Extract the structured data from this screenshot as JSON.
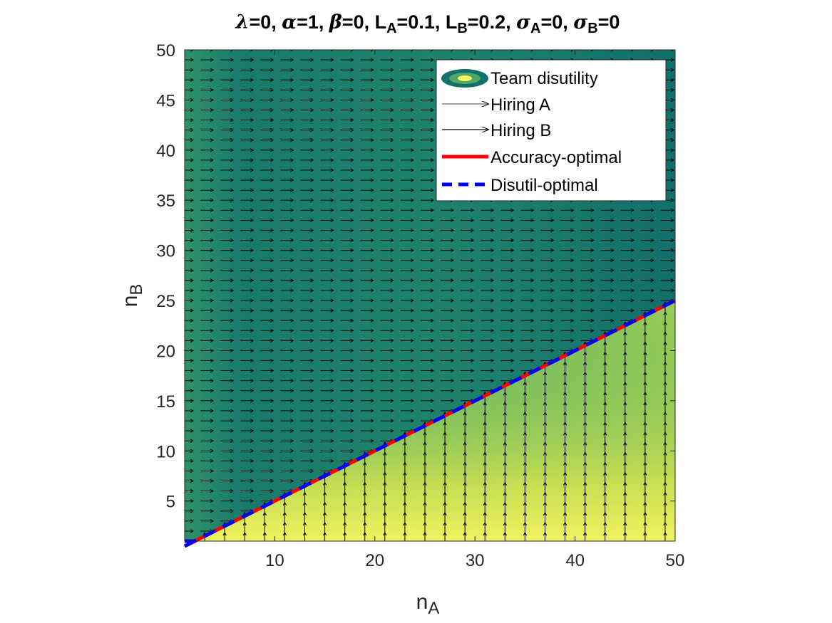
{
  "chart_data": {
    "type": "heatmap",
    "title": {
      "parts": [
        {
          "text": "λ",
          "greek": true
        },
        {
          "text": "=0, "
        },
        {
          "text": "α",
          "greek": true
        },
        {
          "text": "=1, "
        },
        {
          "text": "β",
          "greek": true
        },
        {
          "text": "=0, L"
        },
        {
          "text": "A",
          "sub": true
        },
        {
          "text": "=0.1, L"
        },
        {
          "text": "B",
          "sub": true
        },
        {
          "text": "=0.2, "
        },
        {
          "text": "σ",
          "greek": true
        },
        {
          "text": "A",
          "sub": true
        },
        {
          "text": "=0, "
        },
        {
          "text": "σ",
          "greek": true
        },
        {
          "text": "B",
          "sub": true
        },
        {
          "text": "=0"
        }
      ]
    },
    "xlabel": {
      "main": "n",
      "sub": "A"
    },
    "ylabel": {
      "main": "n",
      "sub": "B"
    },
    "xlim": [
      1,
      50
    ],
    "ylim": [
      1,
      50
    ],
    "xticks": [
      10,
      20,
      30,
      40,
      50
    ],
    "yticks": [
      5,
      10,
      15,
      20,
      25,
      30,
      35,
      40,
      45,
      50
    ],
    "heatmap": {
      "colormap": [
        "#0e6e6b",
        "#2e9668",
        "#75c05a",
        "#c6df4b",
        "#f5f562"
      ],
      "description_levels": "high in lower-right, low in upper-left"
    },
    "quiver": {
      "above_line": "Hiring A (rightward arrows)",
      "below_line": "Hiring B (upward arrows)"
    },
    "series": [
      {
        "name": "Accuracy-optimal",
        "color": "#ff0000",
        "style": "solid",
        "x": [
          1,
          50
        ],
        "y": [
          0.5,
          25
        ]
      },
      {
        "name": "Disutil-optimal",
        "color": "#0000ff",
        "style": "dashed",
        "x": [
          1,
          50
        ],
        "y": [
          0.5,
          25
        ]
      }
    ],
    "legend": {
      "placement": "top-right",
      "entries": [
        "Team disutility",
        "Hiring A",
        "Hiring B",
        "Accuracy-optimal",
        "Disutil-optimal"
      ]
    }
  }
}
